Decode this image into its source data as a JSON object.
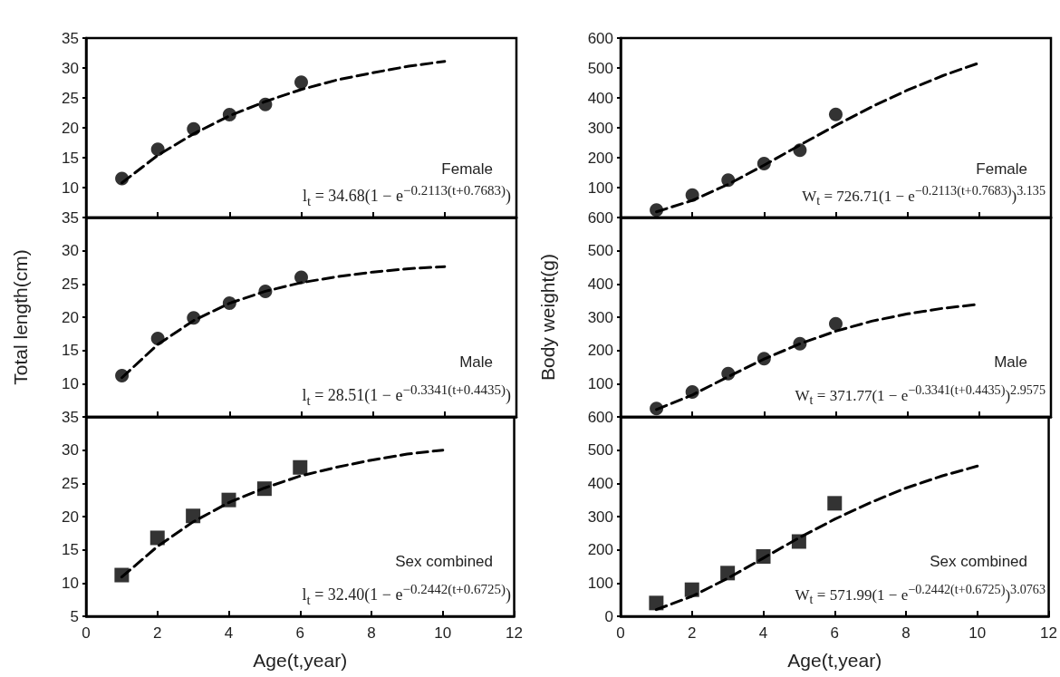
{
  "chart_data": [
    {
      "type": "scatter",
      "annotations": [
        "Female",
        "l$_{t}$ = 34.68(1 − e$^{−0.2113(t+0.7683)}$)"
      ],
      "xlim": [
        0,
        12
      ],
      "xticks": [
        0,
        2,
        4,
        6,
        8,
        10,
        12
      ],
      "ylim": [
        5,
        35
      ],
      "yticks": [
        10,
        15,
        20,
        25,
        30,
        35
      ],
      "tick_labels": "y",
      "series": [
        {
          "marker": "circle",
          "color": "#000000",
          "x": [
            1,
            2,
            3,
            4,
            5,
            6
          ],
          "values": [
            11.5,
            16.4,
            19.8,
            22.2,
            23.9,
            27.6
          ]
        },
        {
          "type": "line",
          "marker": "none",
          "line_style": "dashed",
          "color": "#000000",
          "x": [
            1,
            2,
            3,
            4,
            5,
            6,
            7,
            8,
            9,
            10
          ],
          "values": [
            10.8,
            15.4,
            19.0,
            22.0,
            24.4,
            26.4,
            28.0,
            29.2,
            30.3,
            31.1
          ]
        }
      ]
    },
    {
      "type": "scatter",
      "annotations": [
        "Female",
        "W$_{t}$ = 726.71(1 − e$^{−0.2113(t+0.7683)}$)$^{3.135}$"
      ],
      "xlim": [
        0,
        12
      ],
      "xticks": [
        0,
        2,
        4,
        6,
        8,
        10,
        12
      ],
      "ylim": [
        0,
        600
      ],
      "yticks": [
        100,
        200,
        300,
        400,
        500,
        600
      ],
      "tick_labels": "y",
      "series": [
        {
          "marker": "circle",
          "color": "#000000",
          "x": [
            1,
            2,
            3,
            4,
            5,
            6
          ],
          "values": [
            25,
            75,
            125,
            180,
            225,
            345
          ]
        },
        {
          "type": "line",
          "marker": "none",
          "line_style": "dashed",
          "color": "#000000",
          "x": [
            1,
            2,
            3,
            4,
            5,
            6,
            7,
            8,
            9,
            10
          ],
          "values": [
            19,
            57,
            111,
            175,
            242,
            308,
            370,
            426,
            475,
            517
          ]
        }
      ]
    },
    {
      "type": "scatter",
      "ylabel": "Total length(cm)",
      "annotations": [
        "Male",
        "l$_{t}$ = 28.51(1 − e$^{−0.3341(t+0.4435)}$)"
      ],
      "xlim": [
        0,
        12
      ],
      "xticks": [
        0,
        2,
        4,
        6,
        8,
        10,
        12
      ],
      "ylim": [
        5,
        35
      ],
      "yticks": [
        10,
        15,
        20,
        25,
        30,
        35
      ],
      "tick_labels": "y",
      "series": [
        {
          "marker": "circle",
          "color": "#000000",
          "x": [
            1,
            2,
            3,
            4,
            5,
            6
          ],
          "values": [
            11.2,
            16.8,
            19.9,
            22.1,
            23.9,
            26.0
          ]
        },
        {
          "type": "line",
          "marker": "none",
          "line_style": "dashed",
          "color": "#000000",
          "x": [
            1,
            2,
            3,
            4,
            5,
            6,
            7,
            8,
            9,
            10
          ],
          "values": [
            10.9,
            15.9,
            19.5,
            22.1,
            23.9,
            25.2,
            26.1,
            26.8,
            27.3,
            27.6
          ]
        }
      ]
    },
    {
      "type": "scatter",
      "ylabel": "Body weight(g)",
      "annotations": [
        "Male",
        "W$_{t}$ = 371.77(1 − e$^{−0.3341(t+0.4435)}$)$^{2.9575}$"
      ],
      "xlim": [
        0,
        12
      ],
      "xticks": [
        0,
        2,
        4,
        6,
        8,
        10,
        12
      ],
      "ylim": [
        0,
        600
      ],
      "yticks": [
        100,
        200,
        300,
        400,
        500,
        600
      ],
      "tick_labels": "y",
      "series": [
        {
          "marker": "circle",
          "color": "#000000",
          "x": [
            1,
            2,
            3,
            4,
            5,
            6
          ],
          "values": [
            25,
            75,
            130,
            175,
            220,
            280
          ]
        },
        {
          "type": "line",
          "marker": "none",
          "line_style": "dashed",
          "color": "#000000",
          "x": [
            1,
            2,
            3,
            4,
            5,
            6,
            7,
            8,
            9,
            10
          ],
          "values": [
            22,
            66,
            121,
            174,
            220,
            258,
            288,
            310,
            327,
            339
          ]
        }
      ]
    },
    {
      "type": "scatter",
      "xlabel": "Age(t,year)",
      "annotations": [
        "Sex combined",
        "l$_{t}$ = 32.40(1 − e$^{−0.2442(t+0.6725)}$)"
      ],
      "xlim": [
        0,
        12
      ],
      "xticks": [
        0,
        2,
        4,
        6,
        8,
        10,
        12
      ],
      "ylim": [
        5,
        35
      ],
      "yticks": [
        5,
        10,
        15,
        20,
        25,
        30,
        35
      ],
      "series": [
        {
          "marker": "square",
          "color": "#000000",
          "x": [
            1,
            2,
            3,
            4,
            5,
            6
          ],
          "values": [
            11.2,
            16.8,
            20.1,
            22.5,
            24.2,
            27.4
          ]
        },
        {
          "type": "line",
          "marker": "none",
          "line_style": "dashed",
          "color": "#000000",
          "x": [
            1,
            2,
            3,
            4,
            5,
            6,
            7,
            8,
            9,
            10
          ],
          "values": [
            10.9,
            15.5,
            19.2,
            22.1,
            24.3,
            26.1,
            27.4,
            28.5,
            29.4,
            30.0
          ]
        }
      ]
    },
    {
      "type": "scatter",
      "xlabel": "Age(t,year)",
      "annotations": [
        "Sex combined",
        "W$_{t}$ = 571.99(1 − e$^{−0.2442(t+0.6725)}$)$^{3.0763}$"
      ],
      "xlim": [
        0,
        12
      ],
      "xticks": [
        0,
        2,
        4,
        6,
        8,
        10,
        12
      ],
      "ylim": [
        0,
        600
      ],
      "yticks": [
        0,
        100,
        200,
        300,
        400,
        500,
        600
      ],
      "series": [
        {
          "marker": "square",
          "color": "#000000",
          "x": [
            1,
            2,
            3,
            4,
            5,
            6
          ],
          "values": [
            40,
            80,
            130,
            180,
            225,
            340
          ]
        },
        {
          "type": "line",
          "marker": "none",
          "line_style": "dashed",
          "color": "#000000",
          "x": [
            1,
            2,
            3,
            4,
            5,
            6,
            7,
            8,
            9,
            10
          ],
          "values": [
            20,
            60,
            114,
            175,
            236,
            292,
            342,
            386,
            422,
            452
          ]
        }
      ]
    }
  ]
}
